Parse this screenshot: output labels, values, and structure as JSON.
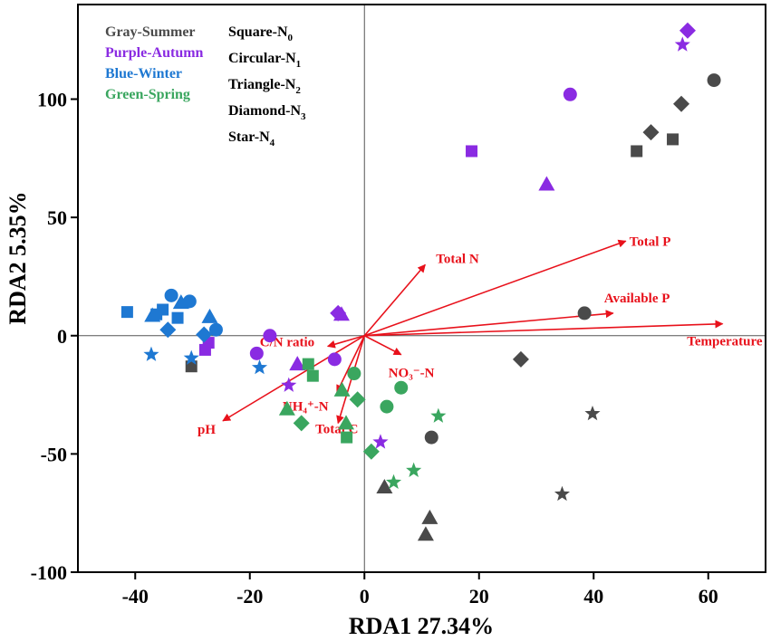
{
  "chart_data": {
    "type": "scatter",
    "subtype": "RDA biplot",
    "xlabel": "RDA1  27.34%",
    "ylabel": "RDA2  5.35%",
    "xlim": [
      -50,
      70
    ],
    "ylim": [
      -100,
      140
    ],
    "xticks": [
      -40,
      -20,
      0,
      20,
      40,
      60
    ],
    "yticks": [
      -100,
      -50,
      0,
      50,
      100
    ],
    "season_legend": [
      {
        "label": "Gray-Summer",
        "color": "#4a4a4a"
      },
      {
        "label": "Purple-Autumn",
        "color": "#8a2be2"
      },
      {
        "label": "Blue-Winter",
        "color": "#1e78d2"
      },
      {
        "label": "Green-Spring",
        "color": "#3aa65f"
      }
    ],
    "shape_legend": [
      {
        "shape": "Square",
        "base": "N",
        "sub": "0"
      },
      {
        "shape": "Circular",
        "base": "N",
        "sub": "1"
      },
      {
        "shape": "Triangle",
        "base": "N",
        "sub": "2"
      },
      {
        "shape": "Diamond",
        "base": "N",
        "sub": "3"
      },
      {
        "shape": "Star",
        "base": "N",
        "sub": "4"
      }
    ],
    "series": [
      {
        "name": "Summer",
        "color": "#4a4a4a",
        "points": [
          {
            "shape": "square",
            "x": 47.5,
            "y": 78
          },
          {
            "shape": "square",
            "x": 53.8,
            "y": 83
          },
          {
            "shape": "square",
            "x": -30.2,
            "y": -13
          },
          {
            "shape": "circle",
            "x": 61,
            "y": 108
          },
          {
            "shape": "circle",
            "x": 38.4,
            "y": 9.5
          },
          {
            "shape": "circle",
            "x": 11.7,
            "y": -43
          },
          {
            "shape": "triangle",
            "x": 3.5,
            "y": -64
          },
          {
            "shape": "triangle",
            "x": 11.4,
            "y": -77
          },
          {
            "shape": "triangle",
            "x": 10.7,
            "y": -84
          },
          {
            "shape": "diamond",
            "x": 50,
            "y": 86
          },
          {
            "shape": "diamond",
            "x": 55.3,
            "y": 98
          },
          {
            "shape": "diamond",
            "x": 27.3,
            "y": -10
          },
          {
            "shape": "star",
            "x": 39.8,
            "y": -33
          },
          {
            "shape": "star",
            "x": 34.5,
            "y": -67
          }
        ]
      },
      {
        "name": "Autumn",
        "color": "#8a2be2",
        "points": [
          {
            "shape": "square",
            "x": 18.7,
            "y": 78
          },
          {
            "shape": "square",
            "x": -27.2,
            "y": -3
          },
          {
            "shape": "square",
            "x": -27.8,
            "y": -6
          },
          {
            "shape": "circle",
            "x": 35.9,
            "y": 102
          },
          {
            "shape": "circle",
            "x": -16.5,
            "y": 0
          },
          {
            "shape": "circle",
            "x": -18.8,
            "y": -7.5
          },
          {
            "shape": "circle",
            "x": -5.2,
            "y": -10
          },
          {
            "shape": "triangle",
            "x": 31.8,
            "y": 64
          },
          {
            "shape": "triangle",
            "x": -4,
            "y": 9
          },
          {
            "shape": "triangle",
            "x": -11.7,
            "y": -12
          },
          {
            "shape": "diamond",
            "x": 56.4,
            "y": 129
          },
          {
            "shape": "diamond",
            "x": -4.6,
            "y": 9.5
          },
          {
            "shape": "star",
            "x": 55.5,
            "y": 123
          },
          {
            "shape": "star",
            "x": -13.2,
            "y": -21
          },
          {
            "shape": "star",
            "x": 2.8,
            "y": -45
          }
        ]
      },
      {
        "name": "Winter",
        "color": "#1e78d2",
        "points": [
          {
            "shape": "square",
            "x": -41.4,
            "y": 10
          },
          {
            "shape": "square",
            "x": -35.2,
            "y": 11
          },
          {
            "shape": "square",
            "x": -36.3,
            "y": 9
          },
          {
            "shape": "square",
            "x": -32.6,
            "y": 7.5
          },
          {
            "shape": "circle",
            "x": -33.7,
            "y": 17
          },
          {
            "shape": "circle",
            "x": -30.5,
            "y": 14.5
          },
          {
            "shape": "circle",
            "x": -25.9,
            "y": 2.5
          },
          {
            "shape": "triangle",
            "x": -32,
            "y": 14
          },
          {
            "shape": "triangle",
            "x": -37,
            "y": 8.5
          },
          {
            "shape": "triangle",
            "x": -27,
            "y": 8
          },
          {
            "shape": "diamond",
            "x": -34.3,
            "y": 2.5
          },
          {
            "shape": "diamond",
            "x": -28,
            "y": 0.5
          },
          {
            "shape": "star",
            "x": -37.2,
            "y": -8
          },
          {
            "shape": "star",
            "x": -30.2,
            "y": -9.5
          },
          {
            "shape": "star",
            "x": -18.3,
            "y": -13.5
          }
        ]
      },
      {
        "name": "Spring",
        "color": "#3aa65f",
        "points": [
          {
            "shape": "square",
            "x": -9.8,
            "y": -12
          },
          {
            "shape": "square",
            "x": -9,
            "y": -17
          },
          {
            "shape": "square",
            "x": -3.1,
            "y": -43
          },
          {
            "shape": "circle",
            "x": -1.8,
            "y": -16
          },
          {
            "shape": "circle",
            "x": 6.4,
            "y": -22
          },
          {
            "shape": "circle",
            "x": 3.9,
            "y": -30
          },
          {
            "shape": "triangle",
            "x": -13.5,
            "y": -31
          },
          {
            "shape": "triangle",
            "x": -3.9,
            "y": -23
          },
          {
            "shape": "triangle",
            "x": -3.2,
            "y": -37
          },
          {
            "shape": "diamond",
            "x": -11,
            "y": -37
          },
          {
            "shape": "diamond",
            "x": -1.2,
            "y": -27
          },
          {
            "shape": "diamond",
            "x": 1.2,
            "y": -49
          },
          {
            "shape": "star",
            "x": 12.9,
            "y": -34
          },
          {
            "shape": "star",
            "x": 8.6,
            "y": -57
          },
          {
            "shape": "star",
            "x": 5.1,
            "y": -62
          }
        ]
      }
    ],
    "vectors": [
      {
        "label": "Total N",
        "x": 10.6,
        "y": 30
      },
      {
        "label": "Total P",
        "x": 45.6,
        "y": 40
      },
      {
        "label": "Available P",
        "x": 43.4,
        "y": 9.5
      },
      {
        "label": "Temperature",
        "x": 62.5,
        "y": 5
      },
      {
        "label": "C/N ratio",
        "x": -6.4,
        "y": -4.5
      },
      {
        "label": "NO₃⁻-N",
        "x": 6.4,
        "y": -8
      },
      {
        "label": "NH₄⁺-N",
        "x": -4.8,
        "y": -24
      },
      {
        "label": "Total C",
        "x": -4.6,
        "y": -37
      },
      {
        "label": "pH",
        "x": -24.7,
        "y": -36
      }
    ],
    "vector_color": "#e8111b"
  }
}
